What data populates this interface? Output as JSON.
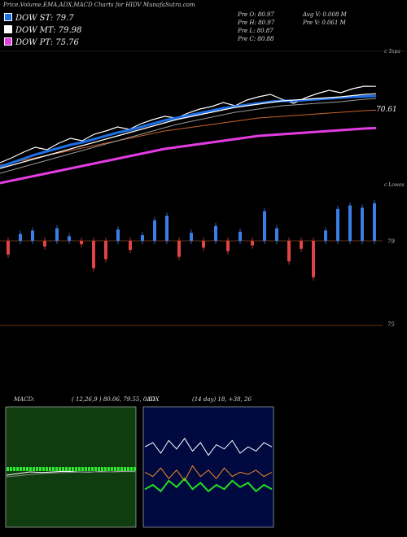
{
  "header": {
    "title": "Price,Volume,EMA,ADX,MACD Charts for HIDV MunafaSutra.com"
  },
  "legend": [
    {
      "label": "DOW ST: 79.7",
      "color": "#1e6fe6"
    },
    {
      "label": "DOW MT: 79.98",
      "color": "#ffffff"
    },
    {
      "label": "DOW PT: 75.76",
      "color": "#e23ce2"
    }
  ],
  "ohlc": {
    "open": "Pre  O: 80.97",
    "high": "Pre  H: 80.97",
    "low": "Pre  L: 80.87",
    "close": "Pre  C: 80.88",
    "avg_vol": "Avg V: 0.008  M",
    "pre_vol": "Pre  V: 0.061 M"
  },
  "price_pane": {
    "top_label": "c Topa",
    "last_label": "70.61"
  },
  "lower_pane": {
    "top_label": "c Lowes",
    "level_79": "79",
    "level_75": "75"
  },
  "macd": {
    "label": "MACD:",
    "values": "( 12,26,9 ) 80.06, 79.55, 0.51"
  },
  "adx": {
    "label": "ADX",
    "values": "(14  day) 18, +38, 26"
  },
  "colors": {
    "ema_short": "#1e6fe6",
    "ema_mid": "#ffffff",
    "ema_long": "#e23ce2",
    "ema_orange": "#c8642a",
    "up_bar": "#3a7ee8",
    "down_bar": "#e04444",
    "macd_bg": "#0f3d0f",
    "macd_hist": "#2ee82e",
    "adx_bg": "#000a40",
    "adx_plus": "#22dd22",
    "adx_minus": "#ee8822"
  },
  "chart_data": [
    {
      "type": "line",
      "series": [
        {
          "values": [
            71.5,
            72.1,
            72.8,
            73.4,
            73.1,
            73.9,
            74.5,
            74.2,
            75.0,
            75.4,
            75.9,
            75.6,
            76.3,
            76.8,
            77.2,
            77.0,
            77.6,
            78.1,
            78.4,
            78.9,
            78.5,
            79.2,
            79.6,
            79.9,
            79.3,
            78.8,
            79.5,
            80.0,
            80.4,
            80.1,
            80.6,
            80.9,
            80.88
          ]
        },
        {
          "name": "DOW ST",
          "values": [
            71.0,
            71.5,
            72.0,
            72.5,
            72.9,
            73.3,
            73.7,
            74.0,
            74.4,
            74.8,
            75.2,
            75.5,
            75.9,
            76.3,
            76.7,
            77.0,
            77.3,
            77.6,
            77.9,
            78.2,
            78.4,
            78.6,
            78.8,
            79.0,
            79.1,
            79.1,
            79.2,
            79.3,
            79.4,
            79.5,
            79.6,
            79.65,
            79.7
          ]
        },
        {
          "name": "DOW MT",
          "values": [
            70.8,
            71.2,
            71.6,
            72.0,
            72.4,
            72.8,
            73.2,
            73.6,
            74.0,
            74.4,
            74.8,
            75.2,
            75.6,
            76.0,
            76.4,
            76.8,
            77.1,
            77.4,
            77.7,
            78.0,
            78.3,
            78.5,
            78.7,
            78.9,
            79.1,
            79.2,
            79.3,
            79.4,
            79.5,
            79.6,
            79.75,
            79.9,
            79.98
          ]
        },
        {
          "name": "DOW PT",
          "values": [
            69.0,
            69.3,
            69.6,
            69.9,
            70.2,
            70.5,
            70.8,
            71.1,
            71.4,
            71.7,
            72.0,
            72.3,
            72.6,
            72.9,
            73.2,
            73.4,
            73.6,
            73.8,
            74.0,
            74.2,
            74.4,
            74.6,
            74.8,
            74.9,
            75.0,
            75.1,
            75.2,
            75.3,
            75.4,
            75.5,
            75.6,
            75.7,
            75.76
          ]
        }
      ]
    },
    {
      "type": "bar",
      "values": [
        -1.2,
        0.6,
        0.9,
        -0.5,
        1.1,
        0.4,
        -0.3,
        -2.4,
        -1.6,
        1.0,
        -0.8,
        0.5,
        1.8,
        2.2,
        -1.4,
        0.7,
        -0.6,
        1.3,
        -0.9,
        0.8,
        -0.4,
        2.6,
        1.1,
        -1.8,
        -0.7,
        -3.2,
        0.9,
        2.8,
        3.1,
        2.9,
        3.3
      ]
    },
    {
      "type": "line",
      "series": [
        {
          "name": "MACD",
          "values": [
            0.4,
            0.45,
            0.5,
            0.48,
            0.5,
            0.52,
            0.5,
            0.49,
            0.51,
            0.5,
            0.52,
            0.51
          ]
        },
        {
          "name": "Signal",
          "values": [
            0.35,
            0.38,
            0.42,
            0.45,
            0.47,
            0.48,
            0.49,
            0.5,
            0.5,
            0.5,
            0.51,
            0.51
          ]
        }
      ]
    },
    {
      "type": "line",
      "series": [
        {
          "values": [
            38,
            40,
            35,
            41,
            37,
            42,
            36,
            40,
            34,
            39,
            37,
            41,
            35,
            38,
            36,
            40,
            38
          ]
        },
        {
          "values": [
            18,
            20,
            17,
            22,
            19,
            23,
            18,
            21,
            17,
            20,
            18,
            22,
            19,
            21,
            17,
            20,
            18
          ]
        },
        {
          "values": [
            26,
            24,
            28,
            23,
            27,
            22,
            29,
            24,
            27,
            23,
            28,
            24,
            26,
            25,
            27,
            24,
            26
          ]
        }
      ]
    }
  ]
}
